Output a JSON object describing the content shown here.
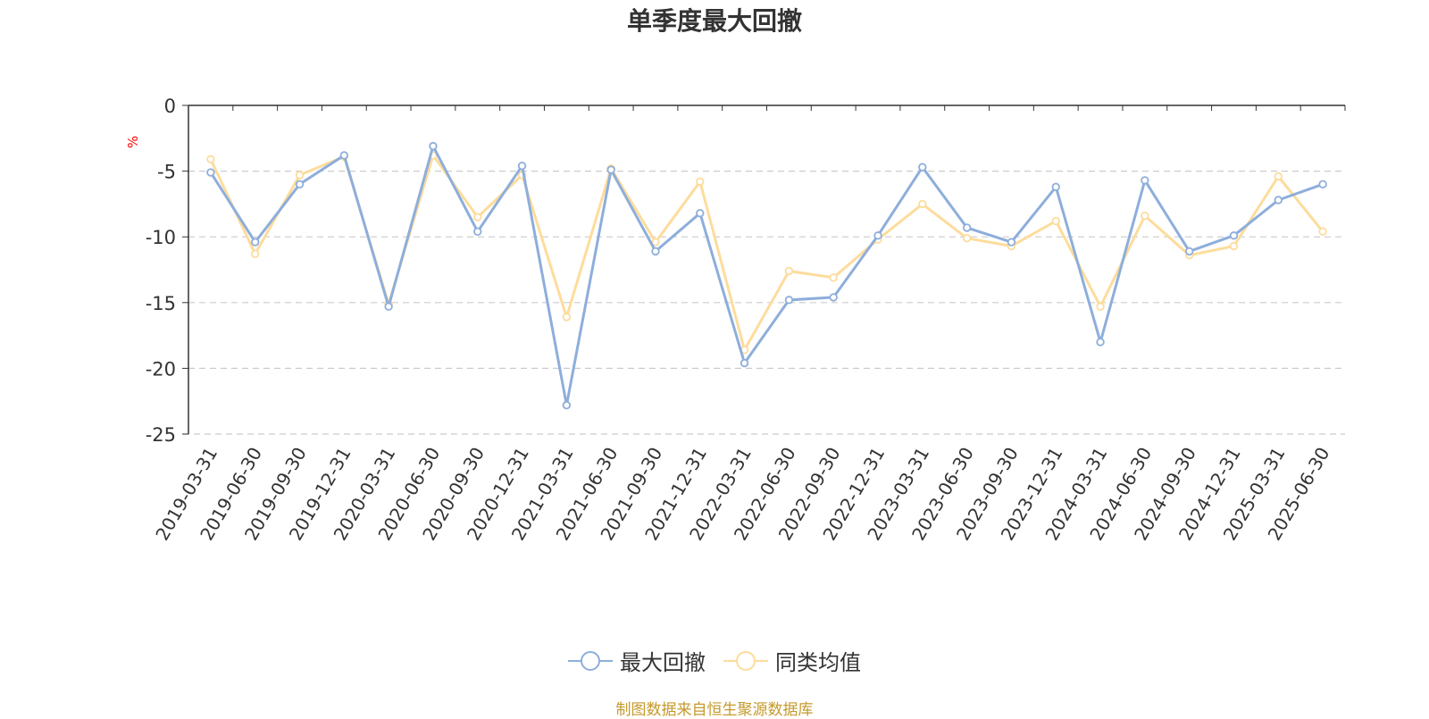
{
  "chart_data": {
    "type": "line",
    "title": "单季度最大回撤",
    "ylabel": "%",
    "ylim": [
      -25,
      0
    ],
    "yticks": [
      0,
      -5,
      -10,
      -15,
      -20,
      -25
    ],
    "grid": true,
    "legend_position": "bottom",
    "categories": [
      "2019-03-31",
      "2019-06-30",
      "2019-09-30",
      "2019-12-31",
      "2020-03-31",
      "2020-06-30",
      "2020-09-30",
      "2020-12-31",
      "2021-03-31",
      "2021-06-30",
      "2021-09-30",
      "2021-12-31",
      "2022-03-31",
      "2022-06-30",
      "2022-09-30",
      "2022-12-31",
      "2023-03-31",
      "2023-06-30",
      "2023-09-30",
      "2023-12-31",
      "2024-03-31",
      "2024-06-30",
      "2024-09-30",
      "2024-12-31",
      "2025-03-31",
      "2025-06-30"
    ],
    "series": [
      {
        "name": "最大回撤",
        "color": "#8eaedb",
        "values": [
          -5.1,
          -10.4,
          -6.0,
          -3.8,
          -15.3,
          -3.1,
          -9.6,
          -4.6,
          -22.8,
          -4.9,
          -11.1,
          -8.2,
          -19.6,
          -14.8,
          -14.6,
          -9.9,
          -4.7,
          -9.3,
          -10.4,
          -6.2,
          -18.0,
          -5.7,
          -11.1,
          -9.9,
          -7.2,
          -6.0
        ]
      },
      {
        "name": "同类均值",
        "color": "#fddc9c",
        "values": [
          -4.1,
          -11.3,
          -5.3,
          -3.9,
          -15.1,
          -3.8,
          -8.5,
          -5.3,
          -16.1,
          -4.8,
          -10.4,
          -5.8,
          -18.6,
          -12.6,
          -13.1,
          -10.2,
          -7.5,
          -10.1,
          -10.7,
          -8.8,
          -15.3,
          -8.4,
          -11.4,
          -10.7,
          -5.4,
          -9.6
        ]
      }
    ]
  },
  "source_note": "制图数据来自恒生聚源数据库"
}
